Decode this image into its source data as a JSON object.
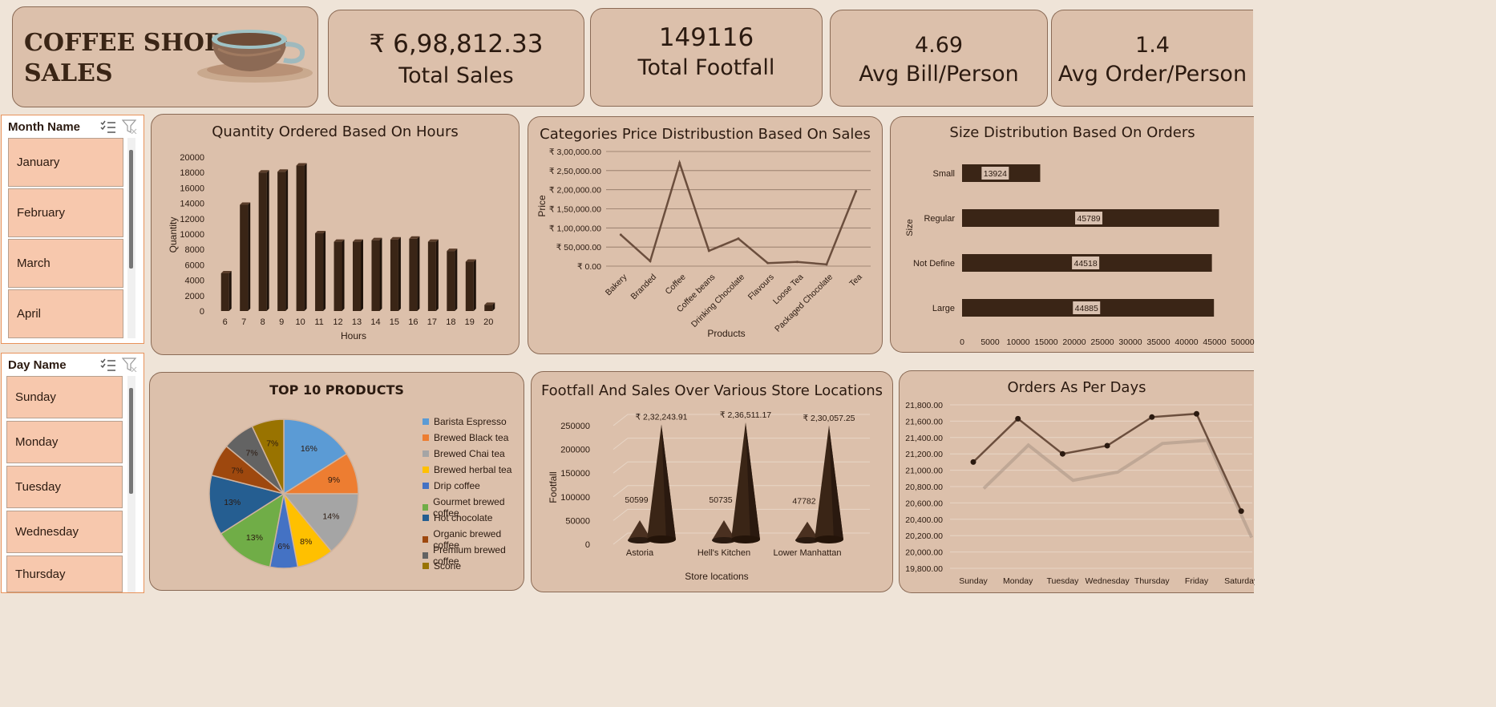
{
  "header": {
    "title_line1": "COFFEE SHOP",
    "title_line2": "SALES"
  },
  "kpis": [
    {
      "value": "₹ 6,98,812.33",
      "label": "Total Sales"
    },
    {
      "value": "149116",
      "label": "Total Footfall"
    },
    {
      "value": "4.69",
      "label": "Avg Bill/Person"
    },
    {
      "value": "1.4",
      "label": "Avg Order/Person"
    }
  ],
  "month_slicer": {
    "title": "Month Name",
    "items": [
      "January",
      "February",
      "March",
      "April"
    ]
  },
  "day_slicer": {
    "title": "Day Name",
    "items": [
      "Sunday",
      "Monday",
      "Tuesday",
      "Wednesday",
      "Thursday"
    ]
  },
  "colors": {
    "bar": "#3a2516",
    "line": "#6b4e3d",
    "panel": "#dcc0ab"
  },
  "chart_data": [
    {
      "id": "hours",
      "type": "bar",
      "title": "Quantity Ordered Based On Hours",
      "xlabel": "Hours",
      "ylabel": "Quantity",
      "categories": [
        "6",
        "7",
        "8",
        "9",
        "10",
        "11",
        "12",
        "13",
        "14",
        "15",
        "16",
        "17",
        "18",
        "19",
        "20"
      ],
      "values": [
        4900,
        13800,
        18000,
        18100,
        18900,
        10100,
        9000,
        9000,
        9200,
        9300,
        9400,
        9000,
        7800,
        6400,
        800
      ],
      "ylim": [
        0,
        20000
      ],
      "yticks": [
        "0",
        "2000",
        "4000",
        "6000",
        "8000",
        "10000",
        "12000",
        "14000",
        "16000",
        "18000",
        "20000"
      ]
    },
    {
      "id": "categories",
      "type": "line",
      "title": "Categories Price Distribustion Based On Sales",
      "xlabel": "Products",
      "ylabel": "Price",
      "categories": [
        "Bakery",
        "Branded",
        "Coffee",
        "Coffee beans",
        "Drinking Chocolate",
        "Flavours",
        "Loose Tea",
        "Packaged Chocolate",
        "Tea"
      ],
      "values": [
        82000,
        13000,
        270000,
        40000,
        72000,
        8000,
        11000,
        4500,
        196000
      ],
      "ylim": [
        0,
        300000
      ],
      "yticks": [
        "₹ 0.00",
        "₹ 50,000.00",
        "₹ 1,00,000.00",
        "₹ 1,50,000.00",
        "₹ 2,00,000.00",
        "₹ 2,50,000.00",
        "₹ 3,00,000.00"
      ]
    },
    {
      "id": "size",
      "type": "bar",
      "title": "Size Distribution Based On Orders",
      "ylabel": "Size",
      "categories": [
        "Small",
        "Regular",
        "Not Define",
        "Large"
      ],
      "values": [
        13924,
        45789,
        44518,
        44885
      ],
      "labels": [
        "13924",
        "45789",
        "44518",
        "44885"
      ],
      "ylim": [
        0,
        50000
      ],
      "xticks": [
        "0",
        "5000",
        "10000",
        "15000",
        "20000",
        "25000",
        "30000",
        "35000",
        "40000",
        "45000",
        "50000"
      ]
    },
    {
      "id": "top10",
      "type": "pie",
      "title": "TOP 10 PRODUCTS",
      "categories": [
        "Barista Espresso",
        "Brewed Black tea",
        "Brewed Chai tea",
        "Brewed herbal tea",
        "Drip coffee",
        "Gourmet brewed coffee",
        "Hot chocolate",
        "Organic brewed coffee",
        "Premium brewed coffee",
        "Scone"
      ],
      "values": [
        16,
        9,
        14,
        8,
        6,
        13,
        13,
        7,
        7,
        7
      ],
      "labels": [
        "16%",
        "9%",
        "14%",
        "8%",
        "6%",
        "13%",
        "13%",
        "7%",
        "7%",
        "7%"
      ],
      "colors": [
        "#5b9bd5",
        "#ed7d31",
        "#a5a5a5",
        "#ffc000",
        "#4472c4",
        "#70ad47",
        "#255e91",
        "#9e480e",
        "#636363",
        "#997300"
      ]
    },
    {
      "id": "stores",
      "type": "bar",
      "title": "Footfall And Sales Over Various Store Locations",
      "xlabel": "Store locations",
      "ylabel": "Footfall",
      "categories": [
        "Astoria",
        "Hell's Kitchen",
        "Lower Manhattan"
      ],
      "series": [
        {
          "values": [
            50599,
            50735,
            47782
          ],
          "labels": [
            "50599",
            "50735",
            "47782"
          ]
        },
        {
          "values": [
            232243.91,
            236511.17,
            230057.25
          ],
          "labels": [
            "₹ 2,32,243.91",
            "₹ 2,36,511.17",
            "₹ 2,30,057.25"
          ]
        }
      ],
      "ylim": [
        0,
        250000
      ],
      "yticks": [
        "0",
        "50000",
        "100000",
        "150000",
        "200000",
        "250000"
      ]
    },
    {
      "id": "days",
      "type": "line",
      "title": "Orders As Per Days",
      "categories": [
        "Sunday",
        "Monday",
        "Tuesday",
        "Wednesday",
        "Thursday",
        "Friday",
        "Saturday"
      ],
      "values": [
        21100,
        21630,
        21200,
        21300,
        21650,
        21690,
        20500
      ],
      "ylim": [
        19800,
        21800
      ],
      "yticks": [
        "19,800.00",
        "20,000.00",
        "20,200.00",
        "20,400.00",
        "20,600.00",
        "20,800.00",
        "21,000.00",
        "21,200.00",
        "21,400.00",
        "21,600.00",
        "21,800.00"
      ]
    }
  ]
}
